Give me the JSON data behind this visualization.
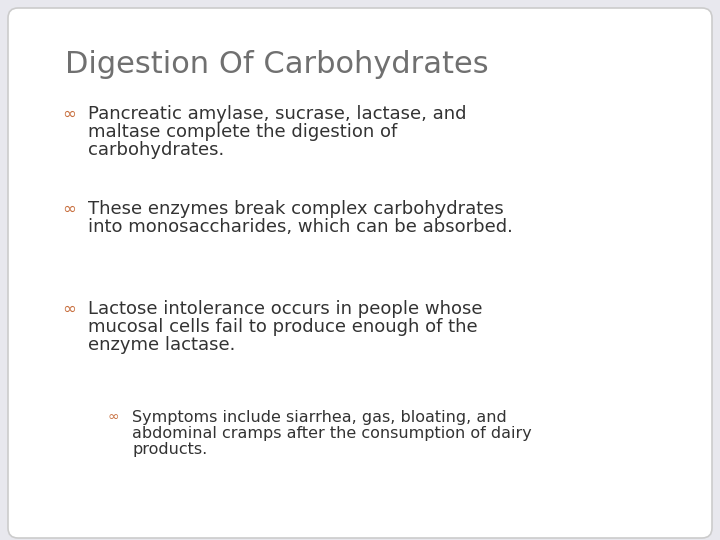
{
  "title": "Digestion Of Carbohydrates",
  "title_color": "#707070",
  "title_fontsize": 22,
  "background_color": "#e8e8ee",
  "bullet_color": "#c87040",
  "text_color": "#333333",
  "body_fontsize": 13,
  "sub_fontsize": 11.5,
  "bullets": [
    {
      "level": 1,
      "lines": [
        "Pancreatic amylase, sucrase, lactase, and",
        "maltase complete the digestion of",
        "carbohydrates."
      ]
    },
    {
      "level": 1,
      "lines": [
        "These enzymes break complex carbohydrates",
        "into monosaccharides, which can be absorbed."
      ]
    },
    {
      "level": 1,
      "lines": [
        "Lactose intolerance occurs in people whose",
        "mucosal cells fail to produce enough of the",
        "enzyme lactase."
      ]
    },
    {
      "level": 2,
      "lines": [
        "Symptoms include siarrhea, gas, bloating, and",
        "abdominal cramps after the consumption of dairy",
        "products."
      ]
    }
  ],
  "panel_bg": "#ffffff",
  "panel_edge": "#cccccc"
}
